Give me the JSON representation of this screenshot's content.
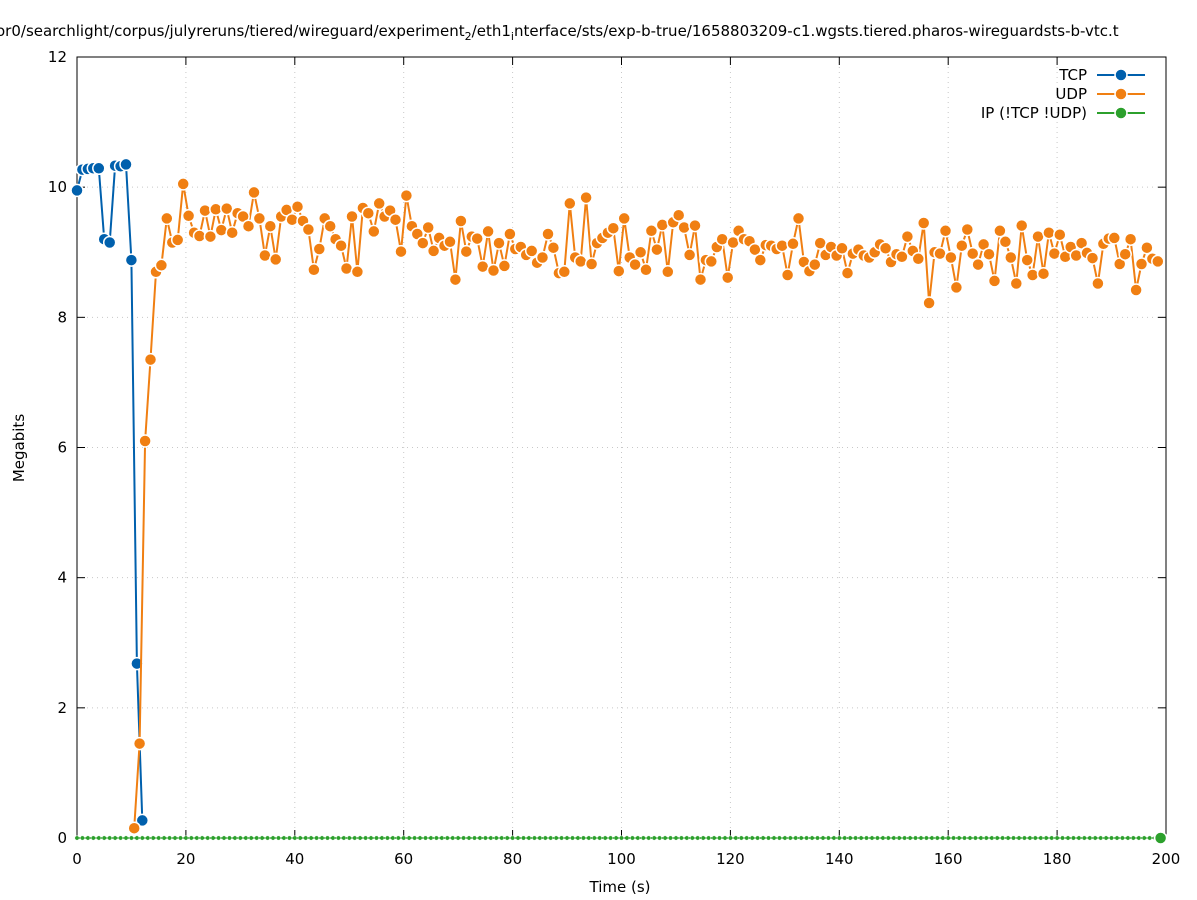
{
  "chart_data": {
    "type": "line",
    "title": "or0/searchlight/corpus/julyreruns/tiered/wireguard/experiment",
    "title_sub": "2",
    "title_mid": "/eth1",
    "title_sub2": "i",
    "title_tail": "nterface/sts/exp-b-true/1658803209-c1.wgsts.tiered.pharos-wireguardsts-b-vtc.t",
    "xlabel": "Time (s)",
    "ylabel": "Megabits",
    "xlim": [
      0,
      200
    ],
    "ylim": [
      0,
      12
    ],
    "x_ticks": [
      "0",
      "20",
      "40",
      "60",
      "80",
      "100",
      "120",
      "140",
      "160",
      "180",
      "200"
    ],
    "y_ticks": [
      "0",
      "2",
      "4",
      "6",
      "8",
      "10",
      "12"
    ],
    "grid": true,
    "legend_position": "top-right",
    "series": [
      {
        "name": "TCP",
        "color": "#0060ad",
        "x": [
          0,
          1,
          2,
          3,
          4,
          5,
          6,
          7,
          8,
          9,
          10,
          11,
          12
        ],
        "values": [
          9.95,
          10.27,
          10.28,
          10.29,
          10.29,
          9.2,
          9.15,
          10.33,
          10.32,
          10.35,
          8.88,
          2.68,
          0.27
        ]
      },
      {
        "name": "UDP",
        "color": "#f07f12",
        "x": [
          10.5,
          11.5,
          12.5,
          13.5,
          14.5,
          15.5,
          16.5,
          17.5,
          18.5,
          19.5,
          20.5,
          21.5,
          22.5,
          23.5,
          24.5,
          25.5,
          26.5,
          27.5,
          28.5,
          29.5,
          30.5,
          31.5,
          32.5,
          33.5,
          34.5,
          35.5,
          36.5,
          37.5,
          38.5,
          39.5,
          40.5,
          41.5,
          42.5,
          43.5,
          44.5,
          45.5,
          46.5,
          47.5,
          48.5,
          49.5,
          50.5,
          51.5,
          52.5,
          53.5,
          54.5,
          55.5,
          56.5,
          57.5,
          58.5,
          59.5,
          60.5,
          61.5,
          62.5,
          63.5,
          64.5,
          65.5,
          66.5,
          67.5,
          68.5,
          69.5,
          70.5,
          71.5,
          72.5,
          73.5,
          74.5,
          75.5,
          76.5,
          77.5,
          78.5,
          79.5,
          80.5,
          81.5,
          82.5,
          83.5,
          84.5,
          85.5,
          86.5,
          87.5,
          88.5,
          89.5,
          90.5,
          91.5,
          92.5,
          93.5,
          94.5,
          95.5,
          96.5,
          97.5,
          98.5,
          99.5,
          100.5,
          101.5,
          102.5,
          103.5,
          104.5,
          105.5,
          106.5,
          107.5,
          108.5,
          109.5,
          110.5,
          111.5,
          112.5,
          113.5,
          114.5,
          115.5,
          116.5,
          117.5,
          118.5,
          119.5,
          120.5,
          121.5,
          122.5,
          123.5,
          124.5,
          125.5,
          126.5,
          127.5,
          128.5,
          129.5,
          130.5,
          131.5,
          132.5,
          133.5,
          134.5,
          135.5,
          136.5,
          137.5,
          138.5,
          139.5,
          140.5,
          141.5,
          142.5,
          143.5,
          144.5,
          145.5,
          146.5,
          147.5,
          148.5,
          149.5,
          150.5,
          151.5,
          152.5,
          153.5,
          154.5,
          155.5,
          156.5,
          157.5,
          158.5,
          159.5,
          160.5,
          161.5,
          162.5,
          163.5,
          164.5,
          165.5,
          166.5,
          167.5,
          168.5,
          169.5,
          170.5,
          171.5,
          172.5,
          173.5,
          174.5,
          175.5,
          176.5,
          177.5,
          178.5,
          179.5,
          180.5,
          181.5,
          182.5,
          183.5,
          184.5,
          185.5,
          186.5,
          187.5,
          188.5,
          189.5,
          190.5,
          191.5,
          192.5,
          193.5,
          194.5,
          195.5,
          196.5,
          197.5,
          198.5
        ],
        "values": [
          0.15,
          1.45,
          6.1,
          7.35,
          8.7,
          8.8,
          9.52,
          9.15,
          9.19,
          10.05,
          9.56,
          9.3,
          9.25,
          9.64,
          9.24,
          9.66,
          9.34,
          9.67,
          9.3,
          9.6,
          9.55,
          9.4,
          9.92,
          9.52,
          8.95,
          9.4,
          8.89,
          9.55,
          9.65,
          9.5,
          9.7,
          9.48,
          9.35,
          8.73,
          9.05,
          9.52,
          9.4,
          9.2,
          9.1,
          8.75,
          9.55,
          8.7,
          9.68,
          9.6,
          9.32,
          9.75,
          9.55,
          9.64,
          9.5,
          9.01,
          9.87,
          9.4,
          9.28,
          9.14,
          9.38,
          9.02,
          9.22,
          9.1,
          9.16,
          8.58,
          9.48,
          9.01,
          9.24,
          9.21,
          8.78,
          9.32,
          8.72,
          9.14,
          8.79,
          9.28,
          9.05,
          9.08,
          8.96,
          9.02,
          8.84,
          8.92,
          9.28,
          9.07,
          8.68,
          8.7,
          9.75,
          8.92,
          8.86,
          9.84,
          8.82,
          9.14,
          9.22,
          9.3,
          9.37,
          8.71,
          9.52,
          8.92,
          8.81,
          9.0,
          8.73,
          9.33,
          9.04,
          9.42,
          8.7,
          9.46,
          9.57,
          9.38,
          8.96,
          9.41,
          8.58,
          8.88,
          8.86,
          9.08,
          9.2,
          8.61,
          9.15,
          9.33,
          9.2,
          9.17,
          9.04,
          8.88,
          9.11,
          9.1,
          9.05,
          9.1,
          8.65,
          9.13,
          9.52,
          8.85,
          8.71,
          8.81,
          9.14,
          8.96,
          9.08,
          8.95,
          9.06,
          8.68,
          8.98,
          9.04,
          8.95,
          8.92,
          9.0,
          9.12,
          9.06,
          8.85,
          8.97,
          8.93,
          9.24,
          9.02,
          8.9,
          9.45,
          8.22,
          9.0,
          8.98,
          9.33,
          8.92,
          8.46,
          9.1,
          9.35,
          8.98,
          8.81,
          9.12,
          8.97,
          8.56,
          9.33,
          9.16,
          8.92,
          8.52,
          9.41,
          8.88,
          8.65,
          9.24,
          8.67,
          9.3,
          8.98,
          9.27,
          8.93,
          9.08,
          8.95,
          9.14,
          8.99,
          8.91,
          8.52,
          9.13,
          9.21,
          9.22,
          8.82,
          8.97,
          9.2,
          8.42,
          8.82,
          9.07,
          8.9,
          8.86
        ]
      },
      {
        "name": "IP (!TCP  !UDP)",
        "color": "#2ca02c",
        "x_start": 0,
        "x_end": 199,
        "value": 0
      }
    ]
  }
}
